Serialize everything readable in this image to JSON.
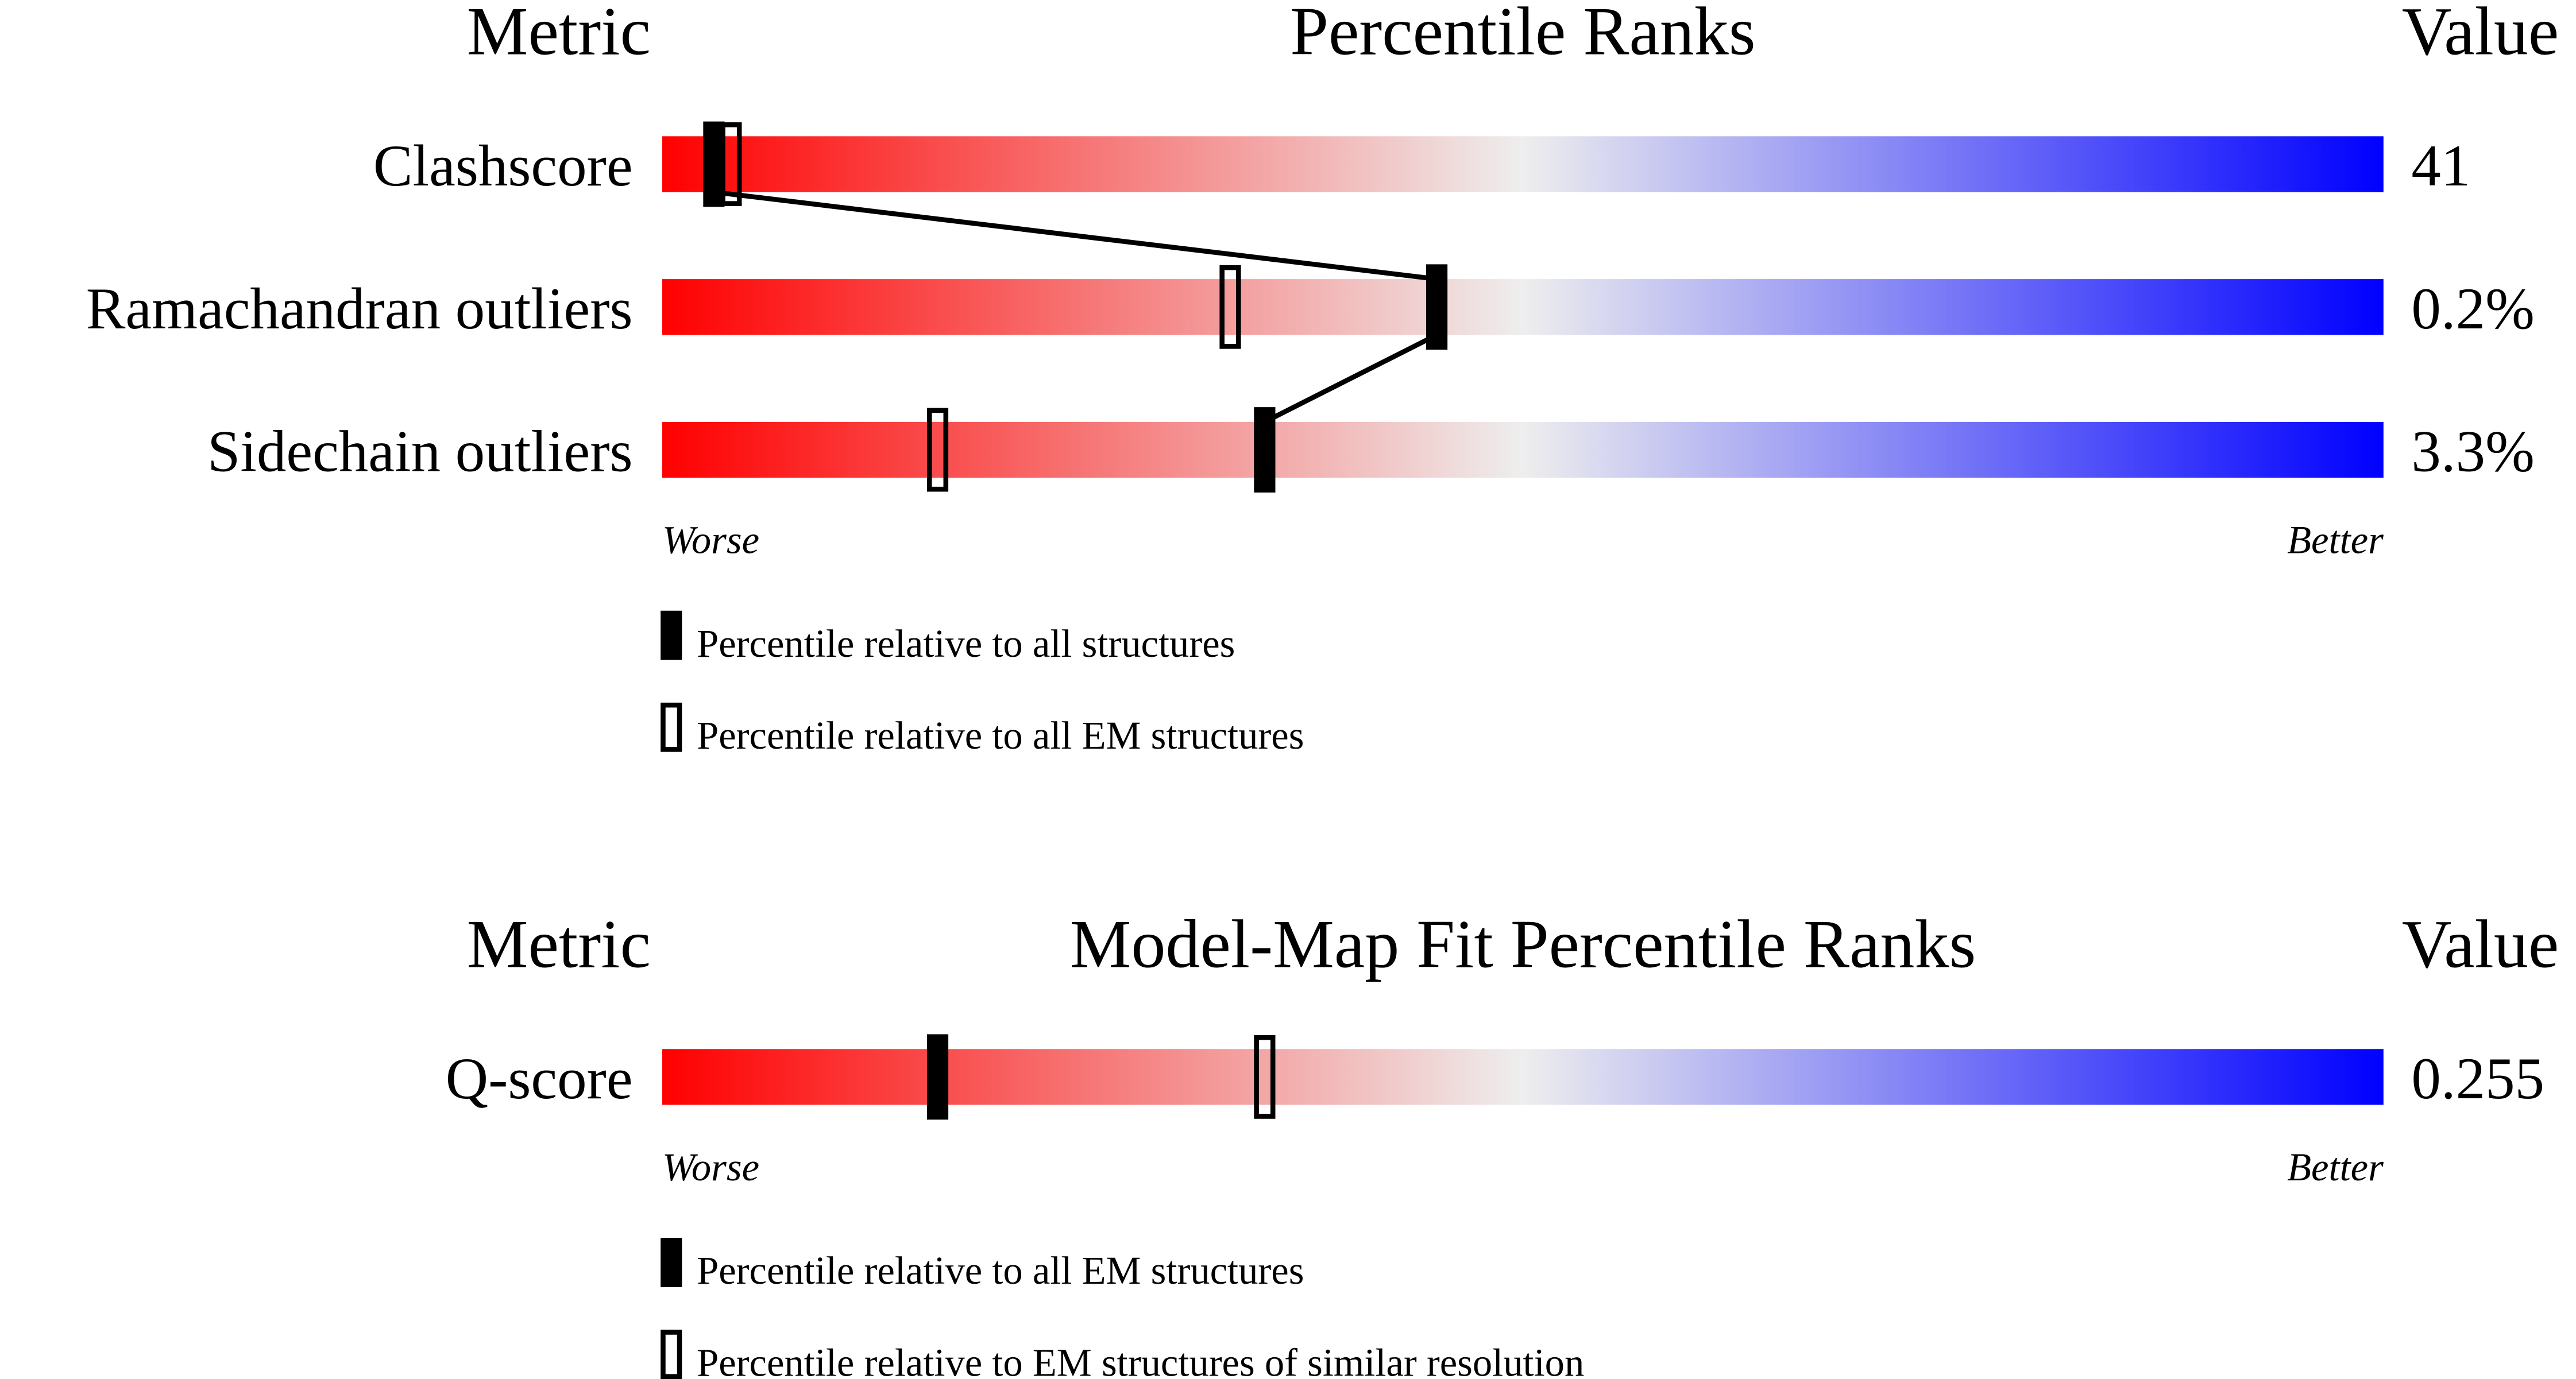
{
  "chart_data": [
    {
      "type": "bar",
      "headers": {
        "metric": "Metric",
        "title": "Percentile Ranks",
        "value": "Value"
      },
      "xlim": [
        0,
        100
      ],
      "scale_labels": {
        "left": "Worse",
        "right": "Better"
      },
      "gradient_colors": [
        "#ff0000",
        "#eeeeee",
        "#0000ff"
      ],
      "rows": [
        {
          "metric": "Clashscore",
          "value": "41",
          "percentile_all": 3,
          "percentile_em": 4
        },
        {
          "metric": "Ramachandran outliers",
          "value": "0.2%",
          "percentile_all": 45,
          "percentile_em": 33
        },
        {
          "metric": "Sidechain outliers",
          "value": "3.3%",
          "percentile_all": 35,
          "percentile_em": 16
        }
      ],
      "connect_filled_markers": true,
      "legend": [
        {
          "marker": "filled",
          "label": "Percentile relative to all structures"
        },
        {
          "marker": "open",
          "label": "Percentile relative to all EM structures"
        }
      ]
    },
    {
      "type": "bar",
      "headers": {
        "metric": "Metric",
        "title": "Model-Map Fit Percentile Ranks",
        "value": "Value"
      },
      "xlim": [
        0,
        100
      ],
      "scale_labels": {
        "left": "Worse",
        "right": "Better"
      },
      "gradient_colors": [
        "#ff0000",
        "#eeeeee",
        "#0000ff"
      ],
      "rows": [
        {
          "metric": "Q-score",
          "value": "0.255",
          "percentile_all": 16,
          "percentile_em": 35
        }
      ],
      "connect_filled_markers": false,
      "legend": [
        {
          "marker": "filled",
          "label": "Percentile relative to all EM structures"
        },
        {
          "marker": "open",
          "label": "Percentile relative to EM structures of similar resolution"
        }
      ]
    }
  ]
}
